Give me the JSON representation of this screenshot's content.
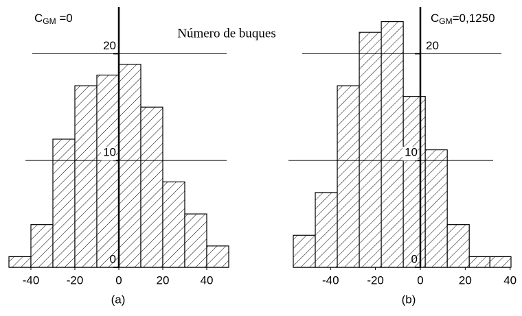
{
  "chart_data": [
    {
      "type": "histogram",
      "label_symbol": "C",
      "label_subscript": "GM",
      "label_rest": " =0",
      "y_label": "Número de buques",
      "caption": "(a)",
      "bins": [
        -50,
        -40,
        -30,
        -20,
        -10,
        0,
        10,
        20,
        30,
        40,
        50
      ],
      "values": [
        1,
        4,
        12,
        17,
        18,
        19,
        15,
        8,
        5,
        2
      ],
      "xlim": [
        -50,
        50
      ],
      "xticks": [
        -40,
        -20,
        0,
        20,
        40
      ],
      "ylim": [
        0,
        24
      ],
      "yticks": [
        0,
        10,
        20
      ],
      "grid": true,
      "color": "#000000"
    },
    {
      "type": "histogram",
      "label_symbol": "C",
      "label_subscript": "GM",
      "label_rest": "=0,1250",
      "caption": "(b)",
      "bins": [
        -56.6,
        -46.8,
        -37,
        -27.2,
        -17.4,
        -7.6,
        2.2,
        12,
        21.8,
        31,
        40.4
      ],
      "values": [
        3,
        7,
        17,
        22,
        23,
        16,
        11,
        4,
        1,
        1
      ],
      "xlim": [
        -56.6,
        40.4
      ],
      "xticks": [
        -40,
        -20,
        0,
        20,
        40
      ],
      "ylim": [
        0,
        24
      ],
      "yticks": [
        0,
        10,
        20
      ],
      "grid": true,
      "color": "#000000"
    }
  ]
}
